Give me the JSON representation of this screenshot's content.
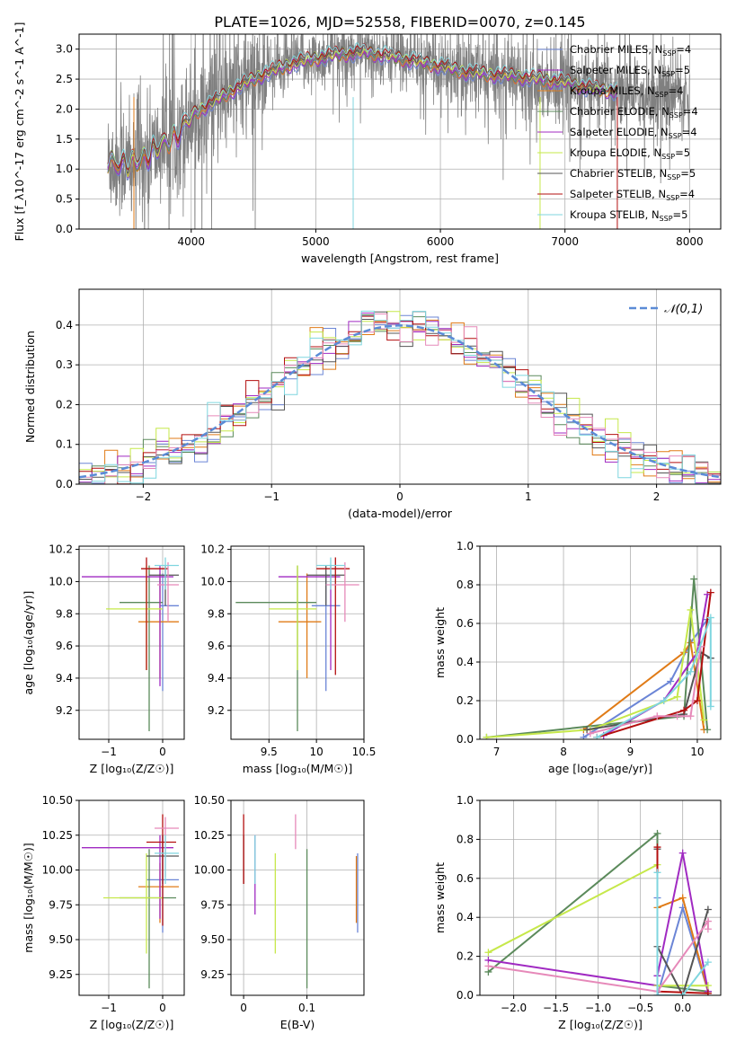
{
  "suptitle": "PLATE=1026, MJD=52558, FIBERID=0070, z=0.145",
  "colors": [
    "#6b85d6",
    "#e07b17",
    "#5b8a5b",
    "#a02ac2",
    "#c6e84a",
    "#555555",
    "#b30f0f",
    "#e689b9",
    "#7fd6df"
  ],
  "chart_data": [
    {
      "id": "spectrum",
      "type": "line",
      "xlabel": "wavelength [Angstrom, rest frame]",
      "ylabel": "Flux [f_λ10^-17 erg cm^-2 s^-1 A^-1]",
      "xlim": [
        3100,
        8250
      ],
      "ylim": [
        0,
        3.25
      ],
      "xticks": [
        4000,
        5000,
        6000,
        7000,
        8000
      ],
      "yticks": [
        0.0,
        0.5,
        1.0,
        1.5,
        2.0,
        2.5,
        3.0
      ],
      "data_color": "#808080",
      "model_range": [
        3330,
        7420
      ],
      "continuum": [
        [
          3330,
          1.15
        ],
        [
          3500,
          1.05
        ],
        [
          3700,
          1.3
        ],
        [
          3900,
          1.6
        ],
        [
          4000,
          1.9
        ],
        [
          4200,
          2.15
        ],
        [
          4400,
          2.4
        ],
        [
          4600,
          2.6
        ],
        [
          4800,
          2.75
        ],
        [
          5000,
          2.85
        ],
        [
          5200,
          2.92
        ],
        [
          5400,
          2.95
        ],
        [
          5600,
          2.88
        ],
        [
          5800,
          2.8
        ],
        [
          6000,
          2.72
        ],
        [
          6200,
          2.62
        ],
        [
          6400,
          2.58
        ],
        [
          6600,
          2.55
        ],
        [
          6800,
          2.5
        ],
        [
          7000,
          2.45
        ],
        [
          7200,
          2.35
        ],
        [
          7420,
          2.3
        ],
        [
          7600,
          2.25
        ],
        [
          8000,
          2.2
        ]
      ],
      "legend": [
        {
          "label": "Chabrier MILES",
          "n": "N_SSP=4",
          "color": "#6b85d6"
        },
        {
          "label": "Salpeter MILES",
          "n": "N_SSP=5",
          "color": "#a02ac2"
        },
        {
          "label": "Kroupa MILES",
          "n": "N_SSP=4",
          "color": "#e07b17"
        },
        {
          "label": "Chabrier ELODIE",
          "n": "N_SSP=4",
          "color": "#5b8a5b"
        },
        {
          "label": "Salpeter ELODIE",
          "n": "N_SSP=4",
          "color": "#a02ac2"
        },
        {
          "label": "Kroupa ELODIE",
          "n": "N_SSP=5",
          "color": "#c6e84a"
        },
        {
          "label": "Chabrier STELIB",
          "n": "N_SSP=5",
          "color": "#555555"
        },
        {
          "label": "Salpeter STELIB",
          "n": "N_SSP=4",
          "color": "#b30f0f"
        },
        {
          "label": "Kroupa STELIB",
          "n": "N_SSP=5",
          "color": "#7fd6df"
        }
      ]
    },
    {
      "id": "residuals",
      "type": "histogram",
      "xlabel": "(data-model)/error",
      "ylabel": "Normed distribution",
      "xlim": [
        -2.5,
        2.5
      ],
      "ylim": [
        0,
        0.49
      ],
      "xticks": [
        -2,
        -1,
        0,
        1,
        2
      ],
      "yticks": [
        0.0,
        0.1,
        0.2,
        0.3,
        0.4
      ],
      "legend": "N(0,1)",
      "gauss_color": "#5b8bd6",
      "bin_width": 0.1
    },
    {
      "id": "age_vs_Z",
      "type": "errorbar",
      "xlabel": "Z [log10(Z/Z☉)]",
      "ylabel": "age [log10(age/yr)]",
      "xlim": [
        -1.55,
        0.4
      ],
      "ylim": [
        9.02,
        10.22
      ],
      "xticks": [
        -1,
        0
      ],
      "yticks": [
        9.2,
        9.4,
        9.6,
        9.8,
        10.0,
        10.2
      ],
      "points": [
        {
          "x": 0.0,
          "y": 9.85,
          "xe": [
            -0.05,
            0.3
          ],
          "ye": [
            9.32,
            10.05
          ],
          "color": "#6b85d6"
        },
        {
          "x": -0.05,
          "y": 9.75,
          "xe": [
            -0.45,
            0.3
          ],
          "ye": [
            9.4,
            10.05
          ],
          "color": "#e07b17"
        },
        {
          "x": -0.25,
          "y": 9.87,
          "xe": [
            -0.8,
            0.0
          ],
          "ye": [
            9.07,
            10.1
          ],
          "color": "#5b8a5b"
        },
        {
          "x": -0.05,
          "y": 10.03,
          "xe": [
            -1.5,
            0.2
          ],
          "ye": [
            9.35,
            10.1
          ],
          "color": "#a02ac2"
        },
        {
          "x": -0.3,
          "y": 9.83,
          "xe": [
            -1.05,
            0.0
          ],
          "ye": [
            9.45,
            10.1
          ],
          "color": "#c6e84a"
        },
        {
          "x": 0.05,
          "y": 10.04,
          "xe": [
            -0.25,
            0.3
          ],
          "ye": [
            9.85,
            10.1
          ],
          "color": "#555555"
        },
        {
          "x": -0.3,
          "y": 10.08,
          "xe": [
            -0.4,
            0.1
          ],
          "ye": [
            9.45,
            10.15
          ],
          "color": "#b30f0f"
        },
        {
          "x": 0.1,
          "y": 9.98,
          "xe": [
            -0.1,
            0.3
          ],
          "ye": [
            9.75,
            10.12
          ],
          "color": "#e689b9"
        },
        {
          "x": 0.05,
          "y": 10.1,
          "xe": [
            -0.15,
            0.3
          ],
          "ye": [
            9.95,
            10.15
          ],
          "color": "#7fd6df"
        }
      ]
    },
    {
      "id": "age_vs_mass",
      "type": "errorbar",
      "xlabel": "mass [log10(M/M☉)]",
      "xlim": [
        9.1,
        10.5
      ],
      "ylim": [
        9.02,
        10.22
      ],
      "xticks": [
        9.5,
        10.0,
        10.5
      ],
      "yticks": [
        9.2,
        9.4,
        9.6,
        9.8,
        10.0,
        10.2
      ],
      "points": [
        {
          "x": 10.1,
          "y": 9.85,
          "xe": [
            9.95,
            10.25
          ],
          "ye": [
            9.32,
            10.05
          ],
          "color": "#6b85d6"
        },
        {
          "x": 9.9,
          "y": 9.75,
          "xe": [
            9.6,
            10.05
          ],
          "ye": [
            9.4,
            10.05
          ],
          "color": "#e07b17"
        },
        {
          "x": 9.8,
          "y": 9.87,
          "xe": [
            9.15,
            10.0
          ],
          "ye": [
            9.07,
            10.1
          ],
          "color": "#5b8a5b"
        },
        {
          "x": 10.15,
          "y": 10.03,
          "xe": [
            9.6,
            10.25
          ],
          "ye": [
            9.45,
            10.1
          ],
          "color": "#a02ac2"
        },
        {
          "x": 9.8,
          "y": 9.83,
          "xe": [
            9.5,
            10.0
          ],
          "ye": [
            9.45,
            10.1
          ],
          "color": "#c6e84a"
        },
        {
          "x": 10.1,
          "y": 10.04,
          "xe": [
            9.9,
            10.3
          ],
          "ye": [
            9.85,
            10.1
          ],
          "color": "#555555"
        },
        {
          "x": 10.2,
          "y": 10.08,
          "xe": [
            10.0,
            10.35
          ],
          "ye": [
            9.42,
            10.15
          ],
          "color": "#b30f0f"
        },
        {
          "x": 10.3,
          "y": 9.98,
          "xe": [
            10.1,
            10.45
          ],
          "ye": [
            9.75,
            10.12
          ],
          "color": "#e689b9"
        },
        {
          "x": 10.15,
          "y": 10.1,
          "xe": [
            10.0,
            10.3
          ],
          "ye": [
            9.95,
            10.15
          ],
          "color": "#7fd6df"
        }
      ]
    },
    {
      "id": "mw_vs_age",
      "type": "line",
      "xlabel": "age [log10(age/yr)]",
      "ylabel": "mass weight",
      "xlim": [
        6.75,
        10.35
      ],
      "ylim": [
        0,
        1.0
      ],
      "xticks": [
        7,
        8,
        9,
        10
      ],
      "yticks": [
        0.0,
        0.2,
        0.4,
        0.6,
        0.8,
        1.0
      ],
      "series": [
        {
          "color": "#6b85d6",
          "x": [
            8.3,
            9.6,
            9.9,
            10.15
          ],
          "y": [
            0.01,
            0.3,
            0.5,
            0.62
          ]
        },
        {
          "color": "#e07b17",
          "x": [
            8.3,
            9.8,
            9.9,
            10.1
          ],
          "y": [
            0.05,
            0.45,
            0.5,
            0.05
          ]
        },
        {
          "color": "#5b8a5b",
          "x": [
            6.85,
            9.8,
            9.95,
            10.15
          ],
          "y": [
            0.01,
            0.12,
            0.83,
            0.05
          ]
        },
        {
          "color": "#a02ac2",
          "x": [
            8.6,
            9.5,
            10.0,
            10.15
          ],
          "y": [
            0.02,
            0.2,
            0.45,
            0.75
          ]
        },
        {
          "color": "#c6e84a",
          "x": [
            6.85,
            8.4,
            9.7,
            9.9,
            10.1
          ],
          "y": [
            0.01,
            0.05,
            0.22,
            0.67,
            0.1
          ]
        },
        {
          "color": "#555555",
          "x": [
            8.35,
            9.8,
            10.05,
            10.2
          ],
          "y": [
            0.05,
            0.13,
            0.45,
            0.42
          ]
        },
        {
          "color": "#b30f0f",
          "x": [
            8.5,
            9.8,
            10.0,
            10.2
          ],
          "y": [
            0.01,
            0.15,
            0.2,
            0.76
          ]
        },
        {
          "color": "#e689b9",
          "x": [
            8.4,
            9.4,
            9.7,
            9.9,
            10.05
          ],
          "y": [
            0.03,
            0.12,
            0.12,
            0.12,
            0.48
          ]
        },
        {
          "color": "#7fd6df",
          "x": [
            8.5,
            9.5,
            9.9,
            10.2,
            10.2
          ],
          "y": [
            0.01,
            0.2,
            0.35,
            0.63,
            0.17
          ]
        }
      ]
    },
    {
      "id": "mass_vs_Z",
      "type": "errorbar",
      "xlabel": "Z [log10(Z/Z☉)]",
      "ylabel": "mass [log10(M/M☉)]",
      "xlim": [
        -1.55,
        0.4
      ],
      "ylim": [
        9.1,
        10.5
      ],
      "xticks": [
        -1,
        0
      ],
      "yticks": [
        9.25,
        9.5,
        9.75,
        10.0,
        10.25,
        10.5
      ],
      "points": [
        {
          "x": 0.0,
          "y": 9.93,
          "xe": [
            -0.3,
            0.3
          ],
          "ye": [
            9.55,
            10.25
          ],
          "color": "#6b85d6"
        },
        {
          "x": -0.05,
          "y": 9.88,
          "xe": [
            -0.45,
            0.3
          ],
          "ye": [
            9.62,
            10.05
          ],
          "color": "#e07b17"
        },
        {
          "x": -0.25,
          "y": 9.8,
          "xe": [
            -0.8,
            0.25
          ],
          "ye": [
            9.15,
            10.15
          ],
          "color": "#5b8a5b"
        },
        {
          "x": -0.05,
          "y": 10.16,
          "xe": [
            -1.5,
            0.2
          ],
          "ye": [
            9.65,
            10.25
          ],
          "color": "#a02ac2"
        },
        {
          "x": -0.3,
          "y": 9.8,
          "xe": [
            -1.1,
            0.0
          ],
          "ye": [
            9.4,
            10.12
          ],
          "color": "#c6e84a"
        },
        {
          "x": 0.0,
          "y": 10.1,
          "xe": [
            -0.3,
            0.3
          ],
          "ye": [
            9.9,
            10.25
          ],
          "color": "#555555"
        },
        {
          "x": 0.0,
          "y": 10.2,
          "xe": [
            -0.3,
            0.25
          ],
          "ye": [
            9.6,
            10.4
          ],
          "color": "#b30f0f"
        },
        {
          "x": 0.05,
          "y": 10.3,
          "xe": [
            -0.15,
            0.3
          ],
          "ye": [
            9.95,
            10.38
          ],
          "color": "#e689b9"
        },
        {
          "x": 0.05,
          "y": 10.12,
          "xe": [
            -0.15,
            0.3
          ],
          "ye": [
            9.9,
            10.25
          ],
          "color": "#7fd6df"
        }
      ]
    },
    {
      "id": "mass_vs_ebv",
      "type": "errorbar",
      "xlabel": "E(B-V)",
      "xlim": [
        -0.02,
        0.19
      ],
      "ylim": [
        9.1,
        10.5
      ],
      "xticks": [
        0.0,
        0.1
      ],
      "yticks": [
        9.25,
        9.5,
        9.75,
        10.0,
        10.25,
        10.5
      ],
      "points": [
        {
          "x": 0.18,
          "y": 9.85,
          "ye": [
            9.55,
            10.12
          ],
          "color": "#6b85d6"
        },
        {
          "x": 0.178,
          "y": 9.88,
          "ye": [
            9.62,
            10.1
          ],
          "color": "#e07b17"
        },
        {
          "x": 0.1,
          "y": 9.65,
          "ye": [
            9.15,
            10.15
          ],
          "color": "#5b8a5b"
        },
        {
          "x": 0.018,
          "y": 10.0,
          "ye": [
            9.68,
            10.25
          ],
          "color": "#a02ac2"
        },
        {
          "x": 0.05,
          "y": 9.75,
          "ye": [
            9.4,
            10.12
          ],
          "color": "#c6e84a"
        },
        {
          "x": 0.0,
          "y": 10.1,
          "ye": [
            9.9,
            10.25
          ],
          "color": "#555555"
        },
        {
          "x": 0.0,
          "y": 10.15,
          "ye": [
            9.9,
            10.4
          ],
          "color": "#b30f0f"
        },
        {
          "x": 0.082,
          "y": 10.3,
          "ye": [
            10.15,
            10.4
          ],
          "color": "#e689b9"
        },
        {
          "x": 0.018,
          "y": 10.1,
          "ye": [
            9.9,
            10.25
          ],
          "color": "#7fd6df"
        }
      ]
    },
    {
      "id": "mw_vs_Z",
      "type": "line",
      "xlabel": "Z [log10(Z/Z☉)]",
      "ylabel": "mass weight",
      "xlim": [
        -2.4,
        0.45
      ],
      "ylim": [
        0,
        1.0
      ],
      "xticks": [
        -2.0,
        -1.5,
        -1.0,
        -0.5,
        0.0
      ],
      "yticks": [
        0.0,
        0.2,
        0.4,
        0.6,
        0.8,
        1.0
      ],
      "series": [
        {
          "color": "#6b85d6",
          "x": [
            -0.3,
            -0.3,
            -0.3,
            0.0,
            0.3
          ],
          "y": [
            0.1,
            0.5,
            0.0,
            0.45,
            0.02
          ]
        },
        {
          "color": "#e07b17",
          "x": [
            -0.3,
            0.0,
            0.3
          ],
          "y": [
            0.45,
            0.5,
            0.02
          ]
        },
        {
          "color": "#5b8a5b",
          "x": [
            -2.3,
            -0.3,
            -0.3,
            0.3
          ],
          "y": [
            0.12,
            0.83,
            0.05,
            0.02
          ]
        },
        {
          "color": "#a02ac2",
          "x": [
            -2.3,
            -0.3,
            -0.3,
            0.0,
            0.3
          ],
          "y": [
            0.18,
            0.05,
            0.1,
            0.73,
            0.02
          ]
        },
        {
          "color": "#c6e84a",
          "x": [
            -2.3,
            -0.3,
            -0.3,
            0.3
          ],
          "y": [
            0.22,
            0.67,
            0.05,
            0.05
          ]
        },
        {
          "color": "#555555",
          "x": [
            -0.3,
            -0.3,
            0.0,
            0.3
          ],
          "y": [
            0.75,
            0.25,
            0.0,
            0.44
          ]
        },
        {
          "color": "#b30f0f",
          "x": [
            -0.3,
            -0.3,
            0.3
          ],
          "y": [
            0.76,
            0.02,
            0.01
          ]
        },
        {
          "color": "#e689b9",
          "x": [
            -2.3,
            -0.3,
            0.3,
            0.3
          ],
          "y": [
            0.15,
            0.02,
            0.38,
            0.34
          ]
        },
        {
          "color": "#7fd6df",
          "x": [
            -0.3,
            -0.3,
            0.0,
            0.3
          ],
          "y": [
            0.63,
            0.0,
            0.0,
            0.17
          ]
        }
      ]
    }
  ]
}
